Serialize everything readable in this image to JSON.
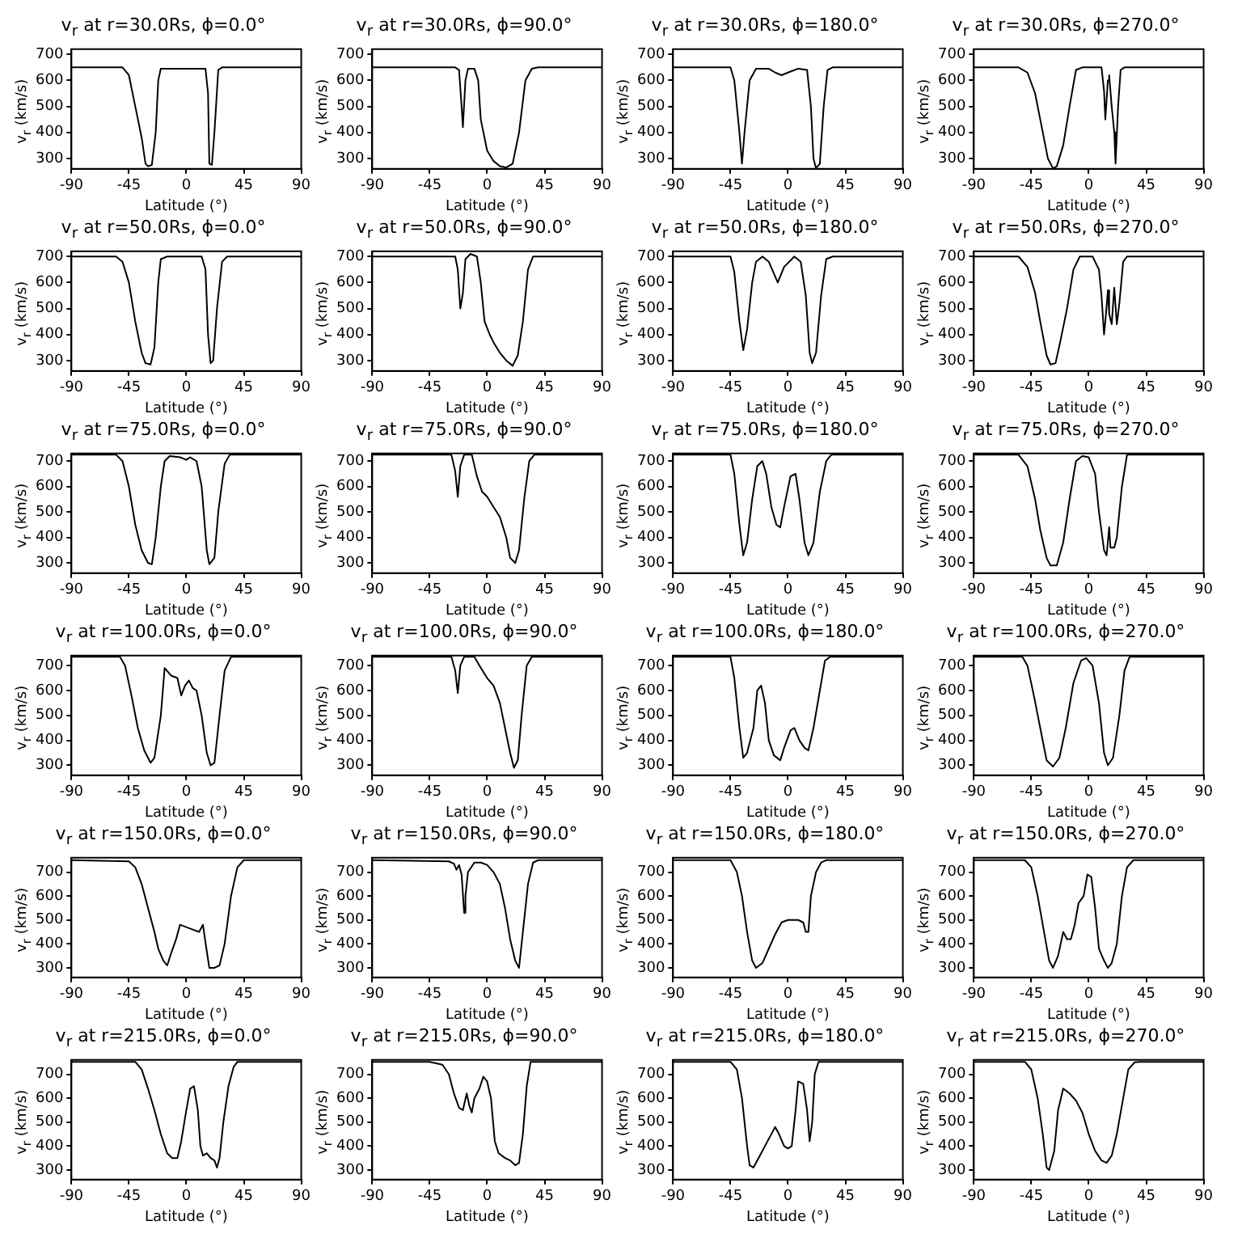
{
  "chart_data": [
    {
      "type": "line",
      "title": "v$_{r}$ at r=30.0Rs, ϕ=0.0°",
      "xlabel": "Latitude (°)",
      "ylabel": "v$_{r}$ (km/s)",
      "color": "#000000",
      "xlim": [
        -90,
        90
      ],
      "ylim": [
        260,
        720
      ],
      "xticks": [
        -90,
        -45,
        0,
        45,
        90
      ],
      "yticks": [
        300,
        400,
        500,
        600,
        700
      ],
      "x": [
        -90,
        -50,
        -45,
        -40,
        -35,
        -32,
        -30,
        -27,
        -24,
        -22,
        -20,
        15,
        17,
        18,
        20,
        22,
        25,
        28,
        90
      ],
      "values": [
        650,
        650,
        620,
        500,
        380,
        280,
        270,
        275,
        400,
        600,
        645,
        645,
        550,
        280,
        275,
        400,
        640,
        650,
        650
      ]
    },
    {
      "type": "line",
      "title": "v$_{r}$ at r=30.0Rs, ϕ=90.0°",
      "xlabel": "Latitude (°)",
      "ylabel": "v$_{r}$ (km/s)",
      "color": "#000000",
      "xlim": [
        -90,
        90
      ],
      "ylim": [
        260,
        720
      ],
      "xticks": [
        -90,
        -45,
        0,
        45,
        90
      ],
      "yticks": [
        300,
        400,
        500,
        600,
        700
      ],
      "x": [
        -90,
        -25,
        -22,
        -20,
        -19,
        -17,
        -15,
        -10,
        -7,
        -5,
        0,
        5,
        10,
        15,
        20,
        25,
        30,
        35,
        40,
        90
      ],
      "values": [
        650,
        650,
        640,
        500,
        420,
        600,
        645,
        645,
        600,
        450,
        330,
        290,
        270,
        265,
        280,
        400,
        600,
        645,
        650,
        650
      ]
    },
    {
      "type": "line",
      "title": "v$_{r}$ at r=30.0Rs, ϕ=180.0°",
      "xlabel": "Latitude (°)",
      "ylabel": "v$_{r}$ (km/s)",
      "color": "#000000",
      "xlim": [
        -90,
        90
      ],
      "ylim": [
        260,
        720
      ],
      "xticks": [
        -90,
        -45,
        0,
        45,
        90
      ],
      "yticks": [
        300,
        400,
        500,
        600,
        700
      ],
      "x": [
        -90,
        -45,
        -42,
        -38,
        -36,
        -34,
        -30,
        -25,
        -15,
        -10,
        -5,
        0,
        8,
        15,
        18,
        20,
        22,
        25,
        28,
        31,
        35,
        90
      ],
      "values": [
        650,
        650,
        600,
        400,
        280,
        400,
        600,
        645,
        645,
        630,
        620,
        630,
        645,
        640,
        500,
        300,
        262,
        280,
        500,
        640,
        650,
        650
      ]
    },
    {
      "type": "line",
      "title": "v$_{r}$ at r=30.0Rs, ϕ=270.0°",
      "xlabel": "Latitude (°)",
      "ylabel": "v$_{r}$ (km/s)",
      "color": "#000000",
      "xlim": [
        -90,
        90
      ],
      "ylim": [
        260,
        720
      ],
      "xticks": [
        -90,
        -45,
        0,
        45,
        90
      ],
      "yticks": [
        300,
        400,
        500,
        600,
        700
      ],
      "x": [
        -90,
        -55,
        -48,
        -42,
        -38,
        -32,
        -28,
        -25,
        -20,
        -15,
        -10,
        -5,
        10,
        12,
        13,
        15,
        16,
        18,
        20,
        21,
        23,
        25,
        28,
        90
      ],
      "values": [
        650,
        650,
        630,
        550,
        450,
        300,
        262,
        270,
        350,
        500,
        640,
        650,
        650,
        560,
        450,
        600,
        620,
        500,
        400,
        280,
        500,
        640,
        650,
        650
      ]
    },
    {
      "type": "line",
      "title": "v$_{r}$ at r=50.0Rs, ϕ=0.0°",
      "xlabel": "Latitude (°)",
      "ylabel": "v$_{r}$ (km/s)",
      "color": "#000000",
      "xlim": [
        -90,
        90
      ],
      "ylim": [
        260,
        720
      ],
      "xticks": [
        -90,
        -45,
        0,
        45,
        90
      ],
      "yticks": [
        300,
        400,
        500,
        600,
        700
      ],
      "x": [
        -90,
        -55,
        -50,
        -45,
        -40,
        -35,
        -32,
        -28,
        -25,
        -22,
        -20,
        -15,
        12,
        15,
        17,
        19,
        21,
        24,
        28,
        32,
        90
      ],
      "values": [
        700,
        700,
        680,
        600,
        450,
        330,
        290,
        285,
        350,
        600,
        690,
        700,
        700,
        650,
        400,
        290,
        300,
        500,
        680,
        700,
        700
      ]
    },
    {
      "type": "line",
      "title": "v$_{r}$ at r=50.0Rs, ϕ=90.0°",
      "xlabel": "Latitude (°)",
      "ylabel": "v$_{r}$ (km/s)",
      "color": "#000000",
      "xlim": [
        -90,
        90
      ],
      "ylim": [
        260,
        720
      ],
      "xticks": [
        -90,
        -45,
        0,
        45,
        90
      ],
      "yticks": [
        300,
        400,
        500,
        600,
        700
      ],
      "x": [
        -90,
        -25,
        -23,
        -21,
        -19,
        -17,
        -13,
        -8,
        -5,
        -2,
        2,
        5,
        10,
        15,
        20,
        24,
        28,
        32,
        36,
        90
      ],
      "values": [
        700,
        700,
        650,
        500,
        560,
        690,
        710,
        700,
        600,
        450,
        400,
        370,
        330,
        300,
        280,
        320,
        450,
        650,
        700,
        700
      ]
    },
    {
      "type": "line",
      "title": "v$_{r}$ at r=50.0Rs, ϕ=180.0°",
      "xlabel": "Latitude (°)",
      "ylabel": "v$_{r}$ (km/s)",
      "color": "#000000",
      "xlim": [
        -90,
        90
      ],
      "ylim": [
        260,
        720
      ],
      "xticks": [
        -90,
        -45,
        0,
        45,
        90
      ],
      "yticks": [
        300,
        400,
        500,
        600,
        700
      ],
      "x": [
        -90,
        -45,
        -42,
        -38,
        -35,
        -32,
        -28,
        -25,
        -20,
        -15,
        -8,
        -3,
        5,
        10,
        14,
        17,
        19,
        22,
        26,
        30,
        35,
        90
      ],
      "values": [
        700,
        700,
        640,
        450,
        340,
        420,
        600,
        680,
        700,
        680,
        600,
        660,
        700,
        680,
        550,
        330,
        290,
        330,
        550,
        690,
        700,
        700
      ]
    },
    {
      "type": "line",
      "title": "v$_{r}$ at r=50.0Rs, ϕ=270.0°",
      "xlabel": "Latitude (°)",
      "ylabel": "v$_{r}$ (km/s)",
      "color": "#000000",
      "xlim": [
        -90,
        90
      ],
      "ylim": [
        260,
        720
      ],
      "xticks": [
        -90,
        -45,
        0,
        45,
        90
      ],
      "yticks": [
        300,
        400,
        500,
        600,
        700
      ],
      "x": [
        -90,
        -55,
        -48,
        -42,
        -38,
        -33,
        -30,
        -26,
        -22,
        -17,
        -12,
        -7,
        3,
        8,
        10,
        12,
        13,
        15,
        16,
        18,
        20,
        22,
        24,
        27,
        30,
        90
      ],
      "values": [
        700,
        700,
        660,
        560,
        450,
        320,
        285,
        290,
        380,
        500,
        650,
        700,
        700,
        650,
        550,
        400,
        450,
        570,
        480,
        440,
        580,
        440,
        520,
        680,
        700,
        700
      ]
    },
    {
      "type": "line",
      "title": "v$_{r}$ at r=75.0Rs, ϕ=0.0°",
      "xlabel": "Latitude (°)",
      "ylabel": "v$_{r}$ (km/s)",
      "color": "#000000",
      "xlim": [
        -90,
        90
      ],
      "ylim": [
        260,
        730
      ],
      "xticks": [
        -90,
        -45,
        0,
        45,
        90
      ],
      "yticks": [
        300,
        400,
        500,
        600,
        700
      ],
      "x": [
        -90,
        -55,
        -50,
        -45,
        -40,
        -35,
        -30,
        -27,
        -24,
        -20,
        -17,
        -13,
        -5,
        0,
        3,
        8,
        12,
        16,
        18,
        22,
        25,
        30,
        34,
        90
      ],
      "values": [
        725,
        725,
        700,
        600,
        450,
        350,
        300,
        295,
        400,
        600,
        700,
        720,
        715,
        705,
        715,
        700,
        600,
        350,
        295,
        320,
        500,
        690,
        725,
        725
      ]
    },
    {
      "type": "line",
      "title": "v$_{r}$ at r=75.0Rs, ϕ=90.0°",
      "xlabel": "Latitude (°)",
      "ylabel": "v$_{r}$ (km/s)",
      "color": "#000000",
      "xlim": [
        -90,
        90
      ],
      "ylim": [
        260,
        730
      ],
      "xticks": [
        -90,
        -45,
        0,
        45,
        90
      ],
      "yticks": [
        300,
        400,
        500,
        600,
        700
      ],
      "x": [
        -90,
        -28,
        -25,
        -23,
        -21,
        -18,
        -12,
        -8,
        -4,
        0,
        5,
        10,
        15,
        18,
        22,
        25,
        29,
        33,
        37,
        90
      ],
      "values": [
        725,
        725,
        660,
        560,
        680,
        725,
        725,
        640,
        580,
        560,
        520,
        480,
        400,
        320,
        300,
        350,
        550,
        700,
        725,
        725
      ]
    },
    {
      "type": "line",
      "title": "v$_{r}$ at r=75.0Rs, ϕ=180.0°",
      "xlabel": "Latitude (°)",
      "ylabel": "v$_{r}$ (km/s)",
      "color": "#000000",
      "xlim": [
        -90,
        90
      ],
      "ylim": [
        260,
        730
      ],
      "xticks": [
        -90,
        -45,
        0,
        45,
        90
      ],
      "yticks": [
        300,
        400,
        500,
        600,
        700
      ],
      "x": [
        -90,
        -45,
        -42,
        -38,
        -35,
        -32,
        -28,
        -24,
        -20,
        -17,
        -13,
        -9,
        -6,
        -3,
        2,
        6,
        9,
        13,
        16,
        20,
        25,
        30,
        34,
        90
      ],
      "values": [
        725,
        725,
        650,
        450,
        330,
        380,
        550,
        680,
        700,
        650,
        520,
        450,
        440,
        520,
        640,
        650,
        550,
        380,
        330,
        380,
        580,
        700,
        725,
        725
      ]
    },
    {
      "type": "line",
      "title": "v$_{r}$ at r=75.0Rs, ϕ=270.0°",
      "xlabel": "Latitude (°)",
      "ylabel": "v$_{r}$ (km/s)",
      "color": "#000000",
      "xlim": [
        -90,
        90
      ],
      "ylim": [
        260,
        730
      ],
      "xticks": [
        -90,
        -45,
        0,
        45,
        90
      ],
      "yticks": [
        300,
        400,
        500,
        600,
        700
      ],
      "x": [
        -90,
        -55,
        -48,
        -42,
        -38,
        -33,
        -30,
        -25,
        -20,
        -15,
        -10,
        -5,
        0,
        5,
        8,
        12,
        14,
        16,
        17,
        20,
        22,
        26,
        30,
        90
      ],
      "values": [
        725,
        725,
        680,
        550,
        430,
        320,
        290,
        290,
        380,
        550,
        700,
        720,
        715,
        650,
        500,
        350,
        330,
        440,
        360,
        360,
        400,
        600,
        725,
        725
      ]
    },
    {
      "type": "line",
      "title": "v$_{r}$ at r=100.0Rs, ϕ=0.0°",
      "xlabel": "Latitude (°)",
      "ylabel": "v$_{r}$ (km/s)",
      "color": "#000000",
      "xlim": [
        -90,
        90
      ],
      "ylim": [
        260,
        740
      ],
      "xticks": [
        -90,
        -45,
        0,
        45,
        90
      ],
      "yticks": [
        300,
        400,
        500,
        600,
        700
      ],
      "x": [
        -90,
        -52,
        -48,
        -43,
        -38,
        -33,
        -28,
        -25,
        -20,
        -17,
        -12,
        -7,
        -4,
        -1,
        2,
        5,
        8,
        12,
        16,
        19,
        22,
        26,
        30,
        35,
        90
      ],
      "values": [
        735,
        735,
        700,
        580,
        450,
        360,
        310,
        330,
        500,
        690,
        660,
        650,
        580,
        620,
        640,
        610,
        600,
        500,
        350,
        300,
        310,
        500,
        680,
        735,
        735
      ]
    },
    {
      "type": "line",
      "title": "v$_{r}$ at r=100.0Rs, ϕ=90.0°",
      "xlabel": "Latitude (°)",
      "ylabel": "v$_{r}$ (km/s)",
      "color": "#000000",
      "xlim": [
        -90,
        90
      ],
      "ylim": [
        260,
        740
      ],
      "xticks": [
        -90,
        -45,
        0,
        45,
        90
      ],
      "yticks": [
        300,
        400,
        500,
        600,
        700
      ],
      "x": [
        -90,
        -28,
        -25,
        -23,
        -21,
        -18,
        -10,
        -6,
        0,
        5,
        10,
        14,
        18,
        21,
        24,
        27,
        31,
        35,
        90
      ],
      "values": [
        735,
        735,
        680,
        590,
        700,
        735,
        735,
        700,
        650,
        620,
        550,
        450,
        350,
        290,
        320,
        500,
        700,
        735,
        735
      ]
    },
    {
      "type": "line",
      "title": "v$_{r}$ at r=100.0Rs, ϕ=180.0°",
      "xlabel": "Latitude (°)",
      "ylabel": "v$_{r}$ (km/s)",
      "color": "#000000",
      "xlim": [
        -90,
        90
      ],
      "ylim": [
        260,
        740
      ],
      "xticks": [
        -90,
        -45,
        0,
        45,
        90
      ],
      "yticks": [
        300,
        400,
        500,
        600,
        700
      ],
      "x": [
        -90,
        -45,
        -42,
        -38,
        -35,
        -32,
        -27,
        -24,
        -21,
        -18,
        -15,
        -11,
        -6,
        -3,
        2,
        5,
        9,
        13,
        16,
        20,
        25,
        29,
        33,
        90
      ],
      "values": [
        735,
        735,
        650,
        450,
        330,
        350,
        450,
        600,
        620,
        550,
        400,
        340,
        320,
        370,
        440,
        450,
        400,
        370,
        360,
        450,
        600,
        720,
        735,
        735
      ]
    },
    {
      "type": "line",
      "title": "v$_{r}$ at r=100.0Rs, ϕ=270.0°",
      "xlabel": "Latitude (°)",
      "ylabel": "v$_{r}$ (km/s)",
      "color": "#000000",
      "xlim": [
        -90,
        90
      ],
      "ylim": [
        260,
        740
      ],
      "xticks": [
        -90,
        -45,
        0,
        45,
        90
      ],
      "yticks": [
        300,
        400,
        500,
        600,
        700
      ],
      "x": [
        -90,
        -52,
        -48,
        -43,
        -38,
        -33,
        -28,
        -23,
        -18,
        -12,
        -6,
        -2,
        3,
        8,
        12,
        15,
        19,
        24,
        28,
        32,
        90
      ],
      "values": [
        735,
        735,
        700,
        580,
        450,
        320,
        295,
        330,
        450,
        630,
        720,
        730,
        700,
        550,
        350,
        300,
        330,
        500,
        680,
        735,
        735
      ]
    },
    {
      "type": "line",
      "title": "v$_{r}$ at r=150.0Rs, ϕ=0.0°",
      "xlabel": "Latitude (°)",
      "ylabel": "v$_{r}$ (km/s)",
      "color": "#000000",
      "xlim": [
        -90,
        90
      ],
      "ylim": [
        260,
        760
      ],
      "xticks": [
        -90,
        -45,
        0,
        45,
        90
      ],
      "yticks": [
        300,
        400,
        500,
        600,
        700
      ],
      "x": [
        -90,
        -45,
        -40,
        -35,
        -30,
        -25,
        -22,
        -18,
        -15,
        -12,
        -8,
        -5,
        0,
        5,
        10,
        13,
        16,
        18,
        22,
        26,
        30,
        35,
        40,
        45,
        90
      ],
      "values": [
        750,
        745,
        720,
        650,
        550,
        450,
        380,
        330,
        310,
        360,
        420,
        480,
        470,
        460,
        450,
        480,
        370,
        300,
        300,
        310,
        400,
        600,
        720,
        750,
        750
      ]
    },
    {
      "type": "line",
      "title": "v$_{r}$ at r=150.0Rs, ϕ=90.0°",
      "xlabel": "Latitude (°)",
      "ylabel": "v$_{r}$ (km/s)",
      "color": "#000000",
      "xlim": [
        -90,
        90
      ],
      "ylim": [
        260,
        760
      ],
      "xticks": [
        -90,
        -45,
        0,
        45,
        90
      ],
      "yticks": [
        300,
        400,
        500,
        600,
        700
      ],
      "x": [
        -90,
        -30,
        -26,
        -24,
        -22,
        -20,
        -18,
        -17,
        -15,
        -10,
        -5,
        0,
        5,
        10,
        14,
        18,
        22,
        25,
        28,
        32,
        36,
        40,
        90
      ],
      "values": [
        750,
        745,
        735,
        710,
        730,
        690,
        530,
        600,
        700,
        740,
        740,
        730,
        700,
        650,
        550,
        420,
        330,
        300,
        450,
        650,
        740,
        750,
        750
      ]
    },
    {
      "type": "line",
      "title": "v$_{r}$ at r=150.0Rs, ϕ=180.0°",
      "xlabel": "Latitude (°)",
      "ylabel": "v$_{r}$ (km/s)",
      "color": "#000000",
      "xlim": [
        -90,
        90
      ],
      "ylim": [
        260,
        760
      ],
      "xticks": [
        -90,
        -45,
        0,
        45,
        90
      ],
      "yticks": [
        300,
        400,
        500,
        600,
        700
      ],
      "x": [
        -90,
        -45,
        -40,
        -36,
        -32,
        -28,
        -25,
        -20,
        -15,
        -10,
        -5,
        0,
        8,
        12,
        14,
        16,
        18,
        22,
        26,
        30,
        90
      ],
      "values": [
        750,
        750,
        700,
        600,
        450,
        330,
        300,
        320,
        380,
        440,
        490,
        500,
        500,
        490,
        450,
        450,
        600,
        700,
        740,
        750,
        750
      ]
    },
    {
      "type": "line",
      "title": "v$_{r}$ at r=150.0Rs, ϕ=270.0°",
      "xlabel": "Latitude (°)",
      "ylabel": "v$_{r}$ (km/s)",
      "color": "#000000",
      "xlim": [
        -90,
        90
      ],
      "ylim": [
        260,
        760
      ],
      "xticks": [
        -90,
        -45,
        0,
        45,
        90
      ],
      "yticks": [
        300,
        400,
        500,
        600,
        700
      ],
      "x": [
        -90,
        -50,
        -45,
        -40,
        -35,
        -31,
        -28,
        -24,
        -20,
        -17,
        -14,
        -11,
        -8,
        -4,
        -1,
        2,
        5,
        8,
        12,
        15,
        18,
        22,
        26,
        30,
        35,
        90
      ],
      "values": [
        750,
        750,
        720,
        600,
        450,
        330,
        300,
        350,
        450,
        420,
        420,
        480,
        570,
        600,
        690,
        680,
        550,
        380,
        330,
        300,
        320,
        400,
        600,
        720,
        750,
        750
      ]
    },
    {
      "type": "line",
      "title": "v$_{r}$ at r=215.0Rs, ϕ=0.0°",
      "xlabel": "Latitude (°)",
      "ylabel": "v$_{r}$ (km/s)",
      "color": "#000000",
      "xlim": [
        -90,
        90
      ],
      "ylim": [
        260,
        760
      ],
      "xticks": [
        -90,
        -45,
        0,
        45,
        90
      ],
      "yticks": [
        300,
        400,
        500,
        600,
        700
      ],
      "x": [
        -90,
        -40,
        -35,
        -30,
        -25,
        -20,
        -15,
        -11,
        -7,
        -4,
        0,
        3,
        6,
        9,
        11,
        13,
        16,
        19,
        22,
        24,
        26,
        29,
        33,
        37,
        40,
        90
      ],
      "values": [
        752,
        752,
        720,
        640,
        550,
        450,
        370,
        350,
        350,
        420,
        550,
        640,
        650,
        550,
        400,
        360,
        370,
        350,
        340,
        310,
        350,
        500,
        650,
        730,
        752,
        752
      ]
    },
    {
      "type": "line",
      "title": "v$_{r}$ at r=215.0Rs, ϕ=90.0°",
      "xlabel": "Latitude (°)",
      "ylabel": "v$_{r}$ (km/s)",
      "color": "#000000",
      "xlim": [
        -90,
        90
      ],
      "ylim": [
        260,
        760
      ],
      "xticks": [
        -90,
        -45,
        0,
        45,
        90
      ],
      "yticks": [
        300,
        400,
        500,
        600,
        700
      ],
      "x": [
        -90,
        -45,
        -35,
        -30,
        -26,
        -22,
        -19,
        -16,
        -14,
        -12,
        -10,
        -6,
        -3,
        0,
        3,
        6,
        9,
        14,
        18,
        22,
        25,
        28,
        31,
        34,
        90
      ],
      "values": [
        752,
        752,
        740,
        700,
        620,
        560,
        550,
        620,
        570,
        540,
        600,
        640,
        690,
        670,
        600,
        420,
        370,
        350,
        340,
        320,
        330,
        450,
        650,
        752,
        752
      ]
    },
    {
      "type": "line",
      "title": "v$_{r}$ at r=215.0Rs, ϕ=180.0°",
      "xlabel": "Latitude (°)",
      "ylabel": "v$_{r}$ (km/s)",
      "color": "#000000",
      "xlim": [
        -90,
        90
      ],
      "ylim": [
        260,
        760
      ],
      "xticks": [
        -90,
        -45,
        0,
        45,
        90
      ],
      "yticks": [
        300,
        400,
        500,
        600,
        700
      ],
      "x": [
        -90,
        -45,
        -40,
        -36,
        -32,
        -30,
        -27,
        -22,
        -17,
        -12,
        -10,
        -7,
        -3,
        0,
        3,
        6,
        8,
        12,
        15,
        17,
        19,
        21,
        24,
        90
      ],
      "values": [
        752,
        752,
        720,
        600,
        400,
        320,
        310,
        360,
        410,
        460,
        480,
        450,
        400,
        390,
        400,
        550,
        670,
        660,
        550,
        420,
        500,
        700,
        752,
        752
      ]
    },
    {
      "type": "line",
      "title": "v$_{r}$ at r=215.0Rs, ϕ=270.0°",
      "xlabel": "Latitude (°)",
      "ylabel": "v$_{r}$ (km/s)",
      "color": "#000000",
      "xlim": [
        -90,
        90
      ],
      "ylim": [
        260,
        760
      ],
      "xticks": [
        -90,
        -45,
        0,
        45,
        90
      ],
      "yticks": [
        300,
        400,
        500,
        600,
        700
      ],
      "x": [
        -90,
        -50,
        -45,
        -40,
        -36,
        -33,
        -31,
        -27,
        -24,
        -20,
        -15,
        -10,
        -5,
        0,
        5,
        10,
        14,
        18,
        22,
        27,
        31,
        36,
        40,
        90
      ],
      "values": [
        752,
        752,
        720,
        600,
        450,
        310,
        300,
        380,
        550,
        640,
        620,
        590,
        540,
        450,
        380,
        340,
        330,
        360,
        450,
        600,
        720,
        750,
        752,
        752
      ]
    }
  ]
}
